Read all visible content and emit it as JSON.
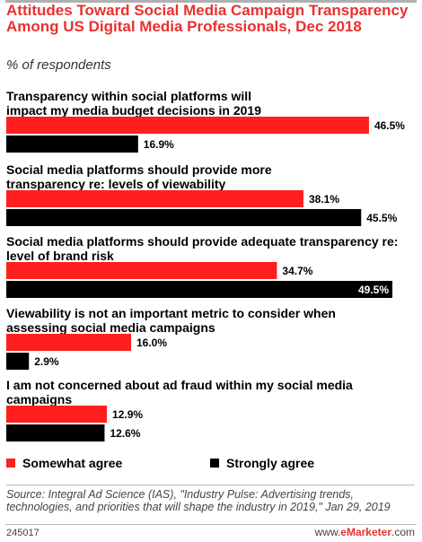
{
  "header": {
    "title": "Attitudes Toward Social Media Campaign Transparency Among US Digital Media Professionals, Dec 2018",
    "subtitle": "% of respondents"
  },
  "chart_data": {
    "type": "bar",
    "orientation": "horizontal",
    "categories": [
      [
        "Transparency within social platforms will",
        "impact my media budget decisions in 2019"
      ],
      [
        "Social media platforms should provide more",
        "transparency re: levels of viewability"
      ],
      [
        "Social media platforms should provide adequate transparency re:",
        "level of brand risk"
      ],
      [
        "Viewability is not an important metric to consider when",
        "assessing social media campaigns"
      ],
      [
        "I am not concerned about ad fraud within my social media",
        "campaigns"
      ]
    ],
    "series": [
      {
        "name": "Somewhat agree",
        "color": "#ff1f1f",
        "values": [
          46.5,
          38.1,
          34.7,
          16.0,
          12.9
        ]
      },
      {
        "name": "Strongly agree",
        "color": "#000000",
        "values": [
          16.9,
          45.5,
          49.5,
          2.9,
          12.6
        ]
      }
    ],
    "value_labels": [
      [
        "46.5%",
        "38.1%",
        "34.7%",
        "16.0%",
        "12.9%"
      ],
      [
        "16.9%",
        "45.5%",
        "49.5%",
        "2.9%",
        "12.6%"
      ]
    ],
    "xlim": [
      0,
      49.5
    ],
    "legend_position": "bottom"
  },
  "legend": {
    "somewhat": "Somewhat agree",
    "strongly": "Strongly agree"
  },
  "footer": {
    "source": "Source: Integral Ad Science (IAS), \"Industry Pulse: Advertising trends, technologies, and priorities that will shape the industry in 2019,\" Jan 29, 2019",
    "chart_id": "245017",
    "brand_prefix": "www.",
    "brand_name": "eMarketer",
    "brand_suffix": ".com"
  }
}
